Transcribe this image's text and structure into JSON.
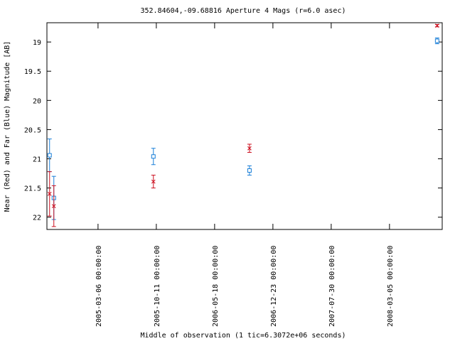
{
  "chart_data": {
    "type": "errorbar",
    "title": "352.84604,-09.68816   Aperture 4 Mags (r=6.0 asec)",
    "x_label": "Middle of observation (1 tic=6.3072e+06 seconds)",
    "y_label": "Near (Red) and Far (Blue) Magnitude [AB]",
    "xlim": [
      "2004-08-26",
      "2008-09-19"
    ],
    "xticks": [
      "2005-03-06 00:00:00",
      "2005-10-11 00:00:00",
      "2006-05-18 00:00:00",
      "2006-12-23 00:00:00",
      "2007-07-30 00:00:00",
      "2008-03-05 00:00:00"
    ],
    "ylim": [
      18.67,
      22.21
    ],
    "y_reversed": true,
    "yticks": [
      19,
      19.5,
      20,
      20.5,
      21,
      21.5,
      22
    ],
    "series": [
      {
        "color": "#1a7fd8",
        "marker": "square",
        "x": [
          "2004-09-05",
          "2004-09-21",
          "2005-09-30",
          "2006-09-26",
          "2008-08-31"
        ],
        "values": [
          20.94,
          21.67,
          20.96,
          21.2,
          18.98
        ],
        "errors": [
          0.28,
          0.37,
          0.14,
          0.08,
          0.05
        ]
      },
      {
        "color": "#cc1020",
        "marker": "cross",
        "x": [
          "2004-09-05",
          "2004-09-21",
          "2005-09-30",
          "2006-09-26",
          "2008-08-31"
        ],
        "values": [
          21.6,
          21.81,
          21.39,
          20.82,
          18.72
        ],
        "errors": [
          0.38,
          0.35,
          0.11,
          0.07,
          0.02
        ]
      }
    ]
  }
}
